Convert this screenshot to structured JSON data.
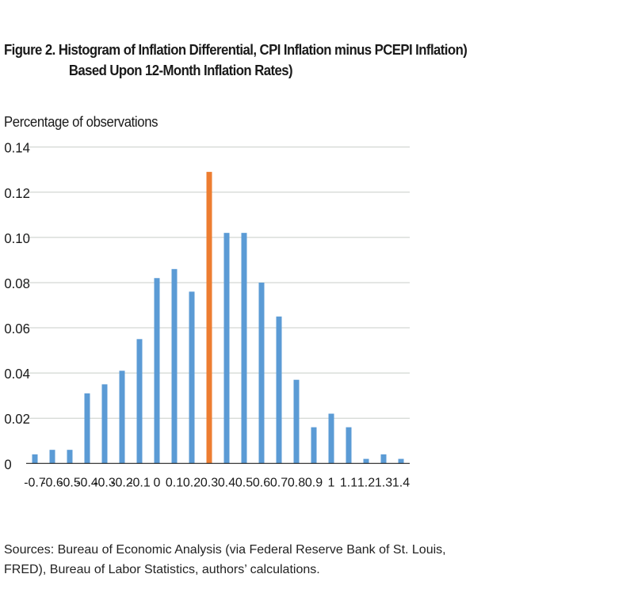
{
  "figure": {
    "title_line1": "Figure 2. Histogram of Inflation Differential, CPI Inflation minus PCEPI Inflation)",
    "title_line2": "Based Upon 12-Month Inflation Rates)",
    "sources_line1": "Sources: Bureau of Economic Analysis (via Federal Reserve Bank of St. Louis,",
    "sources_line2": "FRED), Bureau of Labor Statistics, authors’ calculations."
  },
  "chart_data": {
    "type": "bar",
    "title": "Figure 2. Histogram of Inflation Differential, CPI Inflation minus PCEPI Inflation) Based Upon 12-Month Inflation Rates)",
    "xlabel": "",
    "ylabel": "Percentage of observations",
    "categories": [
      "-0.7",
      "-0.6",
      "-0.5",
      "-0.4",
      "-0.3",
      "-0.2",
      "-0.1",
      "0",
      "0.1",
      "0.2",
      "0.3",
      "0.4",
      "0.5",
      "0.6",
      "0.7",
      "0.8",
      "0.9",
      "1",
      "1.1",
      "1.2",
      "1.3",
      "1.4"
    ],
    "values": [
      0.004,
      0.006,
      0.006,
      0.031,
      0.035,
      0.041,
      0.055,
      0.082,
      0.086,
      0.076,
      0.129,
      0.102,
      0.102,
      0.08,
      0.065,
      0.037,
      0.016,
      0.022,
      0.016,
      0.002,
      0.004,
      0.002
    ],
    "highlight_category": "0.3",
    "ylim": [
      0,
      0.14
    ],
    "yticks": [
      "0",
      "0.02",
      "0.04",
      "0.06",
      "0.08",
      "0.10",
      "0.12",
      "0.14"
    ],
    "grid": true,
    "colors": {
      "bar": "#5b9bd5",
      "highlight": "#ed7d31",
      "grid": "#c8cec8",
      "axis": "#222222"
    }
  }
}
